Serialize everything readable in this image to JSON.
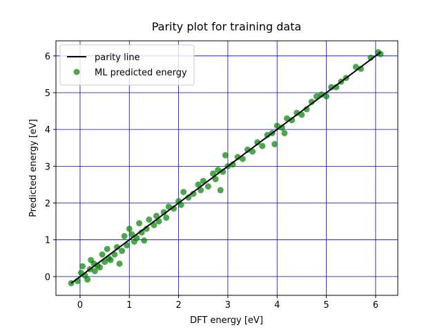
{
  "chart_data": {
    "type": "scatter",
    "title": "Parity plot for training data",
    "xlabel": "DFT energy [eV]",
    "ylabel": "Predicted energy [eV]",
    "xlim": [
      -0.49,
      6.45
    ],
    "ylim": [
      -0.51,
      6.41
    ],
    "xticks": [
      0,
      1,
      2,
      3,
      4,
      5,
      6
    ],
    "yticks": [
      0,
      1,
      2,
      3,
      4,
      5,
      6
    ],
    "grid": true,
    "grid_color": "#0000cc",
    "legend": "upper left",
    "series": [
      {
        "name": "parity line",
        "type": "line",
        "color": "#000000",
        "x": [
          -0.18,
          6.1
        ],
        "values": [
          -0.18,
          6.1
        ]
      },
      {
        "name": "ML predicted energy",
        "type": "scatter",
        "color": "#008000",
        "x": [
          -0.18,
          -0.05,
          0.02,
          0.05,
          0.1,
          0.15,
          0.2,
          0.22,
          0.28,
          0.3,
          0.35,
          0.4,
          0.45,
          0.5,
          0.55,
          0.58,
          0.62,
          0.7,
          0.75,
          0.8,
          0.85,
          0.9,
          0.95,
          1.0,
          1.05,
          1.1,
          1.15,
          1.2,
          1.25,
          1.3,
          1.35,
          1.4,
          1.5,
          1.55,
          1.6,
          1.7,
          1.75,
          1.8,
          1.9,
          2.0,
          2.05,
          2.1,
          2.2,
          2.3,
          2.4,
          2.45,
          2.5,
          2.6,
          2.7,
          2.75,
          2.8,
          2.85,
          2.9,
          2.95,
          3.0,
          3.1,
          3.2,
          3.3,
          3.4,
          3.5,
          3.6,
          3.7,
          3.8,
          3.9,
          3.95,
          4.0,
          4.1,
          4.15,
          4.2,
          4.3,
          4.4,
          4.5,
          4.6,
          4.7,
          4.8,
          4.9,
          5.0,
          5.1,
          5.2,
          5.3,
          5.4,
          5.6,
          5.7,
          5.9,
          6.05,
          6.1
        ],
        "values": [
          -0.18,
          -0.12,
          0.1,
          0.28,
          0.03,
          -0.08,
          0.2,
          0.45,
          0.35,
          0.15,
          0.3,
          0.25,
          0.6,
          0.4,
          0.75,
          0.5,
          0.45,
          0.6,
          0.8,
          0.35,
          0.7,
          1.1,
          0.85,
          1.3,
          1.15,
          0.95,
          1.05,
          1.45,
          1.2,
          0.98,
          1.3,
          1.55,
          1.4,
          1.65,
          1.5,
          1.75,
          1.6,
          1.9,
          1.85,
          2.05,
          1.95,
          2.3,
          2.15,
          2.25,
          2.5,
          2.35,
          2.6,
          2.45,
          2.8,
          2.65,
          2.9,
          2.35,
          2.85,
          3.3,
          3.0,
          3.05,
          3.25,
          3.2,
          3.45,
          3.4,
          3.65,
          3.55,
          3.85,
          3.9,
          3.6,
          4.1,
          4.05,
          3.9,
          4.3,
          4.25,
          4.45,
          4.4,
          4.55,
          4.75,
          4.9,
          4.95,
          4.9,
          5.15,
          5.15,
          5.3,
          5.4,
          5.7,
          5.65,
          5.95,
          6.1,
          6.05
        ]
      }
    ]
  }
}
